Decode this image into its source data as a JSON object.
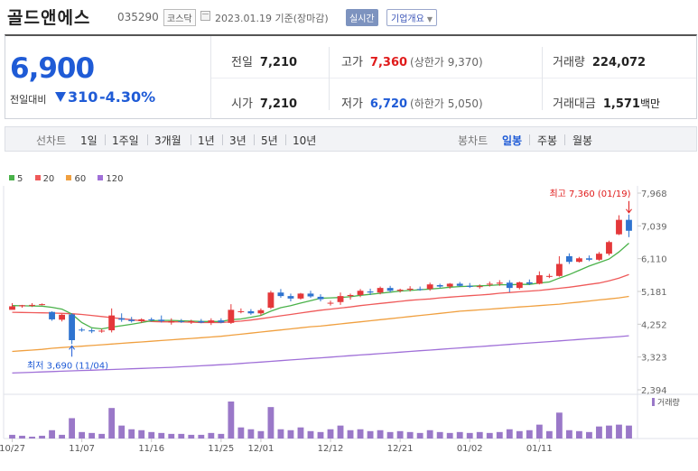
{
  "header": {
    "name": "골드앤에스",
    "code": "035290",
    "market": "코스닥",
    "date": "2023.01.19",
    "date_suffix": "기준(장마감)",
    "realtime": "실시간",
    "overview": "기업개요"
  },
  "price": {
    "current": "6,900",
    "change_label": "전일대비",
    "change": "310",
    "change_pct": "-4.30%",
    "direction": "down",
    "prev_close_label": "전일",
    "prev_close": "7,210",
    "open_label": "시가",
    "open": "7,210",
    "high_label": "고가",
    "high": "7,360",
    "upper_limit_label": "(상한가",
    "upper_limit": "9,370)",
    "low_label": "저가",
    "low": "6,720",
    "lower_limit_label": "(하한가",
    "lower_limit": "5,050)",
    "volume_label": "거래량",
    "volume": "224,072",
    "amount_label": "거래대금",
    "amount": "1,571",
    "amount_unit": "백만"
  },
  "period_bar": {
    "line_label": "선차트",
    "line_periods": [
      "1일",
      "1주일",
      "3개월",
      "1년",
      "3년",
      "5년",
      "10년"
    ],
    "candle_label": "봉차트",
    "candle_periods": [
      "일봉",
      "주봉",
      "월봉"
    ],
    "candle_selected": "일봉"
  },
  "colors": {
    "up": "#e4383a",
    "down": "#2f74d0",
    "ma5": "#4ab24a",
    "ma20": "#ef5a5a",
    "ma60": "#f0a040",
    "ma120": "#a070d8",
    "volume": "#9a78c8"
  },
  "chart_data": {
    "type": "candlestick",
    "legend": [
      {
        "name": "5",
        "color": "#4ab24a"
      },
      {
        "name": "20",
        "color": "#ef5a5a"
      },
      {
        "name": "60",
        "color": "#f0a040"
      },
      {
        "name": "120",
        "color": "#a070d8"
      }
    ],
    "y_ticks": [
      "7,968",
      "7,039",
      "6,110",
      "5,181",
      "4,252",
      "3,323",
      "2,394"
    ],
    "y_tick_values": [
      7968,
      7039,
      6110,
      5181,
      4252,
      3323,
      2394
    ],
    "ylim": [
      2394,
      7968
    ],
    "x_ticks": [
      {
        "label": "10/27",
        "index": 0
      },
      {
        "label": "11/07",
        "index": 7
      },
      {
        "label": "11/16",
        "index": 14
      },
      {
        "label": "11/25",
        "index": 21
      },
      {
        "label": "12/01",
        "index": 25
      },
      {
        "label": "12/12",
        "index": 32
      },
      {
        "label": "12/21",
        "index": 39
      },
      {
        "label": "01/02",
        "index": 46
      },
      {
        "label": "01/11",
        "index": 53
      }
    ],
    "annotation_high": "최고 7,360 (01/19)",
    "annotation_low": "최저 3,690 (11/04)",
    "volume_label": "거래량",
    "candles": [
      [
        4660,
        4850,
        4700,
        4760
      ],
      [
        4760,
        4800,
        4720,
        4790
      ],
      [
        4790,
        4850,
        4740,
        4800
      ],
      [
        4800,
        4840,
        4790,
        4820
      ],
      [
        4600,
        4620,
        4350,
        4390
      ],
      [
        4380,
        4540,
        4330,
        4520
      ],
      [
        4530,
        4560,
        3690,
        3800
      ],
      [
        4100,
        4150,
        4040,
        4080
      ],
      [
        4080,
        4130,
        4000,
        4050
      ],
      [
        4060,
        4120,
        4010,
        4070
      ],
      [
        4080,
        4700,
        4020,
        4500
      ],
      [
        4420,
        4560,
        4320,
        4380
      ],
      [
        4380,
        4460,
        4300,
        4340
      ],
      [
        4340,
        4420,
        4290,
        4390
      ],
      [
        4390,
        4440,
        4330,
        4380
      ],
      [
        4380,
        4500,
        4300,
        4340
      ],
      [
        4300,
        4420,
        4240,
        4340
      ],
      [
        4340,
        4400,
        4290,
        4320
      ],
      [
        4320,
        4380,
        4260,
        4340
      ],
      [
        4340,
        4400,
        4280,
        4300
      ],
      [
        4300,
        4420,
        4230,
        4360
      ],
      [
        4360,
        4420,
        4280,
        4300
      ],
      [
        4290,
        4820,
        4260,
        4660
      ],
      [
        4620,
        4700,
        4560,
        4620
      ],
      [
        4620,
        4680,
        4520,
        4560
      ],
      [
        4560,
        4700,
        4500,
        4650
      ],
      [
        4720,
        5200,
        4680,
        5150
      ],
      [
        5150,
        5250,
        5000,
        5050
      ],
      [
        5050,
        5120,
        4900,
        4980
      ],
      [
        4980,
        5140,
        4950,
        5120
      ],
      [
        5120,
        5200,
        5000,
        5040
      ],
      [
        5030,
        5100,
        4900,
        4960
      ],
      [
        4860,
        4920,
        4780,
        4860
      ],
      [
        4880,
        5150,
        4800,
        5050
      ],
      [
        5050,
        5120,
        4950,
        5080
      ],
      [
        5080,
        5250,
        5020,
        5200
      ],
      [
        5180,
        5260,
        5080,
        5150
      ],
      [
        5150,
        5320,
        5100,
        5280
      ],
      [
        5280,
        5340,
        5150,
        5200
      ],
      [
        5200,
        5260,
        5150,
        5230
      ],
      [
        5230,
        5330,
        5180,
        5260
      ],
      [
        5250,
        5320,
        5200,
        5240
      ],
      [
        5250,
        5430,
        5200,
        5380
      ],
      [
        5360,
        5400,
        5280,
        5320
      ],
      [
        5320,
        5420,
        5260,
        5400
      ],
      [
        5400,
        5450,
        5320,
        5340
      ],
      [
        5340,
        5420,
        5280,
        5310
      ],
      [
        5310,
        5380,
        5260,
        5330
      ],
      [
        5380,
        5460,
        5320,
        5400
      ],
      [
        5400,
        5500,
        5340,
        5430
      ],
      [
        5430,
        5500,
        5160,
        5280
      ],
      [
        5280,
        5460,
        5240,
        5440
      ],
      [
        5440,
        5520,
        5360,
        5400
      ],
      [
        5400,
        5750,
        5380,
        5640
      ],
      [
        5600,
        5680,
        5560,
        5620
      ],
      [
        5620,
        6180,
        5600,
        5960
      ],
      [
        6180,
        6260,
        5960,
        6020
      ],
      [
        6020,
        6160,
        6000,
        6120
      ],
      [
        6120,
        6200,
        6040,
        6080
      ],
      [
        6080,
        6300,
        6050,
        6250
      ],
      [
        6250,
        6620,
        6200,
        6580
      ],
      [
        6800,
        7340,
        6780,
        7210
      ],
      [
        7210,
        7360,
        6720,
        6900
      ]
    ],
    "volume": [
      4,
      3,
      2,
      3,
      9,
      4,
      22,
      7,
      6,
      5,
      33,
      14,
      10,
      9,
      7,
      6,
      5,
      5,
      4,
      4,
      6,
      5,
      40,
      12,
      10,
      8,
      34,
      10,
      9,
      12,
      8,
      7,
      10,
      14,
      9,
      10,
      8,
      9,
      7,
      8,
      7,
      6,
      9,
      7,
      6,
      7,
      6,
      7,
      6,
      7,
      10,
      8,
      9,
      15,
      8,
      28,
      9,
      8,
      7,
      13,
      14,
      15,
      14
    ],
    "ma5": [
      4780,
      4775,
      4770,
      4765,
      4730,
      4680,
      4540,
      4300,
      4150,
      4120,
      4170,
      4210,
      4250,
      4300,
      4350,
      4360,
      4360,
      4350,
      4340,
      4330,
      4330,
      4330,
      4380,
      4400,
      4450,
      4500,
      4620,
      4720,
      4780,
      4850,
      4920,
      4990,
      5000,
      5010,
      5030,
      5070,
      5100,
      5130,
      5160,
      5190,
      5210,
      5230,
      5250,
      5270,
      5300,
      5320,
      5330,
      5340,
      5350,
      5370,
      5370,
      5380,
      5380,
      5420,
      5450,
      5560,
      5660,
      5780,
      5900,
      6000,
      6100,
      6300,
      6550
    ],
    "ma20": [
      4590,
      4585,
      4580,
      4575,
      4570,
      4560,
      4550,
      4530,
      4500,
      4470,
      4440,
      4410,
      4380,
      4350,
      4330,
      4320,
      4320,
      4320,
      4310,
      4300,
      4300,
      4300,
      4320,
      4340,
      4370,
      4410,
      4450,
      4490,
      4530,
      4570,
      4610,
      4650,
      4680,
      4710,
      4740,
      4780,
      4810,
      4840,
      4870,
      4900,
      4930,
      4950,
      4970,
      5000,
      5020,
      5040,
      5060,
      5080,
      5100,
      5130,
      5150,
      5170,
      5190,
      5210,
      5240,
      5270,
      5300,
      5340,
      5380,
      5420,
      5480,
      5560,
      5660
    ],
    "ma60": [
      3480,
      3500,
      3520,
      3540,
      3570,
      3590,
      3610,
      3630,
      3650,
      3670,
      3690,
      3710,
      3730,
      3750,
      3770,
      3790,
      3810,
      3830,
      3850,
      3870,
      3890,
      3910,
      3940,
      3970,
      4000,
      4030,
      4060,
      4090,
      4120,
      4150,
      4180,
      4200,
      4230,
      4260,
      4290,
      4320,
      4350,
      4380,
      4410,
      4440,
      4470,
      4500,
      4530,
      4560,
      4590,
      4620,
      4640,
      4660,
      4680,
      4700,
      4720,
      4740,
      4760,
      4780,
      4800,
      4820,
      4850,
      4880,
      4910,
      4940,
      4970,
      5000,
      5040
    ],
    "ma120": [
      2870,
      2880,
      2890,
      2900,
      2910,
      2920,
      2930,
      2940,
      2950,
      2960,
      2970,
      2980,
      2990,
      3000,
      3010,
      3020,
      3030,
      3045,
      3060,
      3075,
      3090,
      3105,
      3120,
      3140,
      3160,
      3180,
      3200,
      3220,
      3240,
      3260,
      3280,
      3300,
      3320,
      3340,
      3360,
      3380,
      3400,
      3420,
      3440,
      3460,
      3480,
      3500,
      3520,
      3540,
      3560,
      3580,
      3600,
      3620,
      3640,
      3660,
      3680,
      3700,
      3720,
      3740,
      3760,
      3780,
      3800,
      3820,
      3840,
      3860,
      3880,
      3900,
      3925
    ]
  }
}
